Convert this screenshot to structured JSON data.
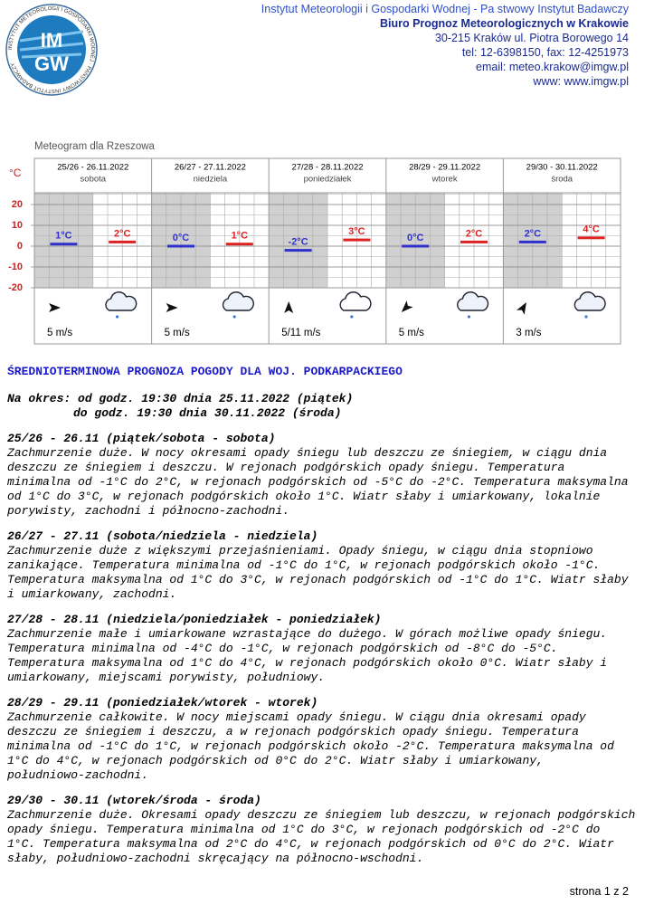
{
  "header": {
    "institute": "Instytut Meteorologii i Gospodarki Wodnej - Pa  stwowy Instytut Badawczy",
    "office": "Biuro Prognoz Meteorologicznych w Krakowie",
    "address": "30-215 Kraków ul. Piotra Borowego 14",
    "phone": "tel: 12-6398150, fax: 12-4251973",
    "email": "email: meteo.krakow@imgw.pl",
    "www": "www: www.imgw.pl"
  },
  "logo": {
    "top": "IM",
    "bottom": "GW",
    "ring": "INSTYTUT METEOROLOGII I GOSPODARKI WODNEJ · PAŃSTWOWY INSTYTUT BADAWCZY"
  },
  "meteogram": {
    "title": "Meteogram dla Rzeszowa",
    "unit": "°C",
    "yticks": [
      20,
      10,
      0,
      -10,
      -20
    ],
    "days": [
      {
        "date": "25/26 - 26.11.2022",
        "weekday": "sobota",
        "night": {
          "value": 1,
          "label": "1°C"
        },
        "day": {
          "value": 2,
          "label": "2°C"
        },
        "wind": "5 m/s"
      },
      {
        "date": "26/27 - 27.11.2022",
        "weekday": "niedziela",
        "night": {
          "value": 0,
          "label": "0°C"
        },
        "day": {
          "value": 1,
          "label": "1°C"
        },
        "wind": "5 m/s"
      },
      {
        "date": "27/28 - 28.11.2022",
        "weekday": "poniedziałek",
        "night": {
          "value": -2,
          "label": "-2°C"
        },
        "day": {
          "value": 3,
          "label": "3°C"
        },
        "wind": "5/11 m/s"
      },
      {
        "date": "28/29 - 29.11.2022",
        "weekday": "wtorek",
        "night": {
          "value": 0,
          "label": "0°C"
        },
        "day": {
          "value": 2,
          "label": "2°C"
        },
        "wind": "5 m/s"
      },
      {
        "date": "29/30 - 30.11.2022",
        "weekday": "środa",
        "night": {
          "value": 2,
          "label": "2°C"
        },
        "day": {
          "value": 4,
          "label": "4°C"
        },
        "wind": "3 m/s"
      }
    ]
  },
  "body": {
    "title": "ŚREDNIOTERMINOWA PROGNOZA POGODY DLA WOJ. PODKARPACKIEGO",
    "period": [
      "Na okres: od godz. 19:30 dnia 25.11.2022 (piątek)",
      "do godz. 19:30 dnia 30.11.2022 (środa)"
    ],
    "sections": [
      {
        "heading": "25/26 - 26.11 (piątek/sobota - sobota)",
        "lines": [
          "Zachmurzenie duże. W nocy okresami opady śniegu lub deszczu ze śniegiem, w ciągu dnia",
          "deszczu ze śniegiem i deszczu. W rejonach podgórskich opady śniegu. Temperatura",
          "minimalna od -1°C do 2°C, w rejonach podgórskich od -5°C do -2°C. Temperatura maksymalna",
          "od 1°C do 3°C, w rejonach podgórskich około 1°C. Wiatr słaby i umiarkowany, lokalnie",
          "porywisty, zachodni i północno-zachodni."
        ]
      },
      {
        "heading": "26/27 - 27.11 (sobota/niedziela - niedziela)",
        "lines": [
          "Zachmurzenie duże z większymi przejaśnieniami. Opady śniegu, w ciągu dnia stopniowo",
          "zanikające. Temperatura minimalna od -1°C do 1°C, w rejonach podgórskich około -1°C.",
          "Temperatura maksymalna od 1°C do 3°C, w rejonach podgórskich od -1°C do 1°C. Wiatr słaby",
          "i umiarkowany, zachodni."
        ]
      },
      {
        "heading": "27/28 - 28.11 (niedziela/poniedziałek - poniedziałek)",
        "lines": [
          "Zachmurzenie małe i umiarkowane wzrastające do dużego. W górach możliwe opady śniegu.",
          "Temperatura minimalna od -4°C do -1°C, w rejonach podgórskich od -8°C do -5°C.",
          "Temperatura maksymalna od 1°C do 4°C, w rejonach podgórskich około 0°C. Wiatr słaby i",
          "umiarkowany, miejscami porywisty, południowy."
        ]
      },
      {
        "heading": "28/29 - 29.11 (poniedziałek/wtorek - wtorek)",
        "lines": [
          "Zachmurzenie całkowite. W nocy miejscami opady śniegu. W ciągu dnia okresami opady",
          "deszczu ze śniegiem i deszczu, a w rejonach podgórskich opady śniegu. Temperatura",
          "minimalna od -1°C do 1°C, w rejonach podgórskich około -2°C. Temperatura maksymalna od",
          "1°C do 4°C, w rejonach podgórskich od 0°C do 2°C. Wiatr słaby i umiarkowany,",
          "południowo-zachodni."
        ]
      },
      {
        "heading": "29/30 - 30.11 (wtorek/środa - środa)",
        "lines": [
          "Zachmurzenie duże. Okresami opady deszczu ze śniegiem lub deszczu, w rejonach podgórskich",
          "opady śniegu. Temperatura minimalna od 1°C do 3°C, w rejonach podgórskich od -2°C do",
          "1°C. Temperatura maksymalna od 2°C do 4°C, w rejonach podgórskich od 0°C do 2°C. Wiatr",
          "słaby, południowo-zachodni skręcający na północno-wschodni."
        ]
      }
    ]
  },
  "footer": {
    "page": "strona 1 z 2"
  }
}
